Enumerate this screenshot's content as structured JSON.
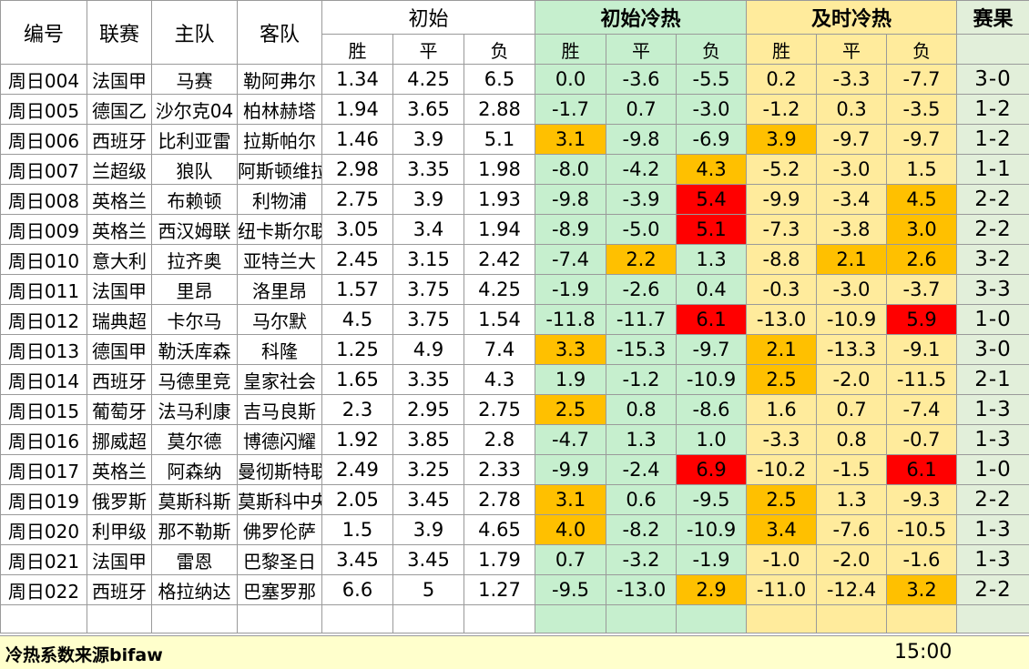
{
  "headers": {
    "id": "编号",
    "league": "联赛",
    "home": "主队",
    "away": "客队",
    "initial": "初始",
    "initial_heat": "初始冷热",
    "live_heat": "及时冷热",
    "result": "赛果",
    "win": "胜",
    "draw": "平",
    "loss": "负"
  },
  "rows": [
    {
      "id": "周日004",
      "league": "法国甲",
      "home": "马赛",
      "away": "勒阿弗尔",
      "o": [
        "1.34",
        "4.25",
        "6.5"
      ],
      "h": [
        "0.0",
        "-3.6",
        "-5.5"
      ],
      "l": [
        "0.2",
        "-3.3",
        "-7.7"
      ],
      "res": "3-0"
    },
    {
      "id": "周日005",
      "league": "德国乙",
      "home": "沙尔克04",
      "away": "柏林赫塔",
      "o": [
        "1.94",
        "3.65",
        "2.88"
      ],
      "h": [
        "-1.7",
        "0.7",
        "-3.0"
      ],
      "l": [
        "-1.2",
        "0.3",
        "-3.5"
      ],
      "res": "1-2"
    },
    {
      "id": "周日006",
      "league": "西班牙",
      "home": "比利亚雷",
      "away": "拉斯帕尔",
      "o": [
        "1.46",
        "3.9",
        "5.1"
      ],
      "h": [
        "3.1",
        "-9.8",
        "-6.9"
      ],
      "l": [
        "3.9",
        "-9.7",
        "-9.7"
      ],
      "res": "1-2"
    },
    {
      "id": "周日007",
      "league": "兰超级",
      "home": "狼队",
      "away": "阿斯顿维拉",
      "o": [
        "2.98",
        "3.35",
        "1.98"
      ],
      "h": [
        "-8.0",
        "-4.2",
        "4.3"
      ],
      "l": [
        "-5.2",
        "-3.0",
        "1.5"
      ],
      "res": "1-1"
    },
    {
      "id": "周日008",
      "league": "英格兰",
      "home": "布赖顿",
      "away": "利物浦",
      "o": [
        "2.75",
        "3.9",
        "1.93"
      ],
      "h": [
        "-9.8",
        "-3.9",
        "5.4"
      ],
      "l": [
        "-9.9",
        "-3.4",
        "4.5"
      ],
      "res": "2-2"
    },
    {
      "id": "周日009",
      "league": "英格兰",
      "home": "西汉姆联",
      "away": "纽卡斯尔联",
      "o": [
        "3.05",
        "3.4",
        "1.94"
      ],
      "h": [
        "-8.9",
        "-5.0",
        "5.1"
      ],
      "l": [
        "-7.3",
        "-3.8",
        "3.0"
      ],
      "res": "2-2"
    },
    {
      "id": "周日010",
      "league": "意大利",
      "home": "拉齐奥",
      "away": "亚特兰大",
      "o": [
        "2.45",
        "3.15",
        "2.42"
      ],
      "h": [
        "-7.4",
        "2.2",
        "1.3"
      ],
      "l": [
        "-8.8",
        "2.1",
        "2.6"
      ],
      "res": "3-2"
    },
    {
      "id": "周日011",
      "league": "法国甲",
      "home": "里昂",
      "away": "洛里昂",
      "o": [
        "1.57",
        "3.75",
        "4.25"
      ],
      "h": [
        "-1.9",
        "-2.6",
        "0.4"
      ],
      "l": [
        "-0.3",
        "-3.0",
        "-3.7"
      ],
      "res": "3-3"
    },
    {
      "id": "周日012",
      "league": "瑞典超",
      "home": "卡尔马",
      "away": "马尔默",
      "o": [
        "4.5",
        "3.75",
        "1.54"
      ],
      "h": [
        "-11.8",
        "-11.7",
        "6.1"
      ],
      "l": [
        "-13.0",
        "-10.9",
        "5.9"
      ],
      "res": "1-0"
    },
    {
      "id": "周日013",
      "league": "德国甲",
      "home": "勒沃库森",
      "away": "科隆",
      "o": [
        "1.25",
        "4.9",
        "7.4"
      ],
      "h": [
        "3.3",
        "-15.3",
        "-9.7"
      ],
      "l": [
        "2.1",
        "-13.3",
        "-9.1"
      ],
      "res": "3-0"
    },
    {
      "id": "周日014",
      "league": "西班牙",
      "home": "马德里竞",
      "away": "皇家社会",
      "o": [
        "1.65",
        "3.35",
        "4.3"
      ],
      "h": [
        "1.9",
        "-1.2",
        "-10.9"
      ],
      "l": [
        "2.5",
        "-2.0",
        "-11.5"
      ],
      "res": "2-1"
    },
    {
      "id": "周日015",
      "league": "葡萄牙",
      "home": "法马利康",
      "away": "吉马良斯",
      "o": [
        "2.3",
        "2.95",
        "2.75"
      ],
      "h": [
        "2.5",
        "0.8",
        "-8.6"
      ],
      "l": [
        "1.6",
        "0.7",
        "-7.4"
      ],
      "res": "1-3"
    },
    {
      "id": "周日016",
      "league": "挪威超",
      "home": "莫尔德",
      "away": "博德闪耀",
      "o": [
        "1.92",
        "3.85",
        "2.8"
      ],
      "h": [
        "-4.7",
        "1.3",
        "1.0"
      ],
      "l": [
        "-3.3",
        "0.8",
        "-0.7"
      ],
      "res": "1-3"
    },
    {
      "id": "周日017",
      "league": "英格兰",
      "home": "阿森纳",
      "away": "曼彻斯特联",
      "o": [
        "2.49",
        "3.25",
        "2.33"
      ],
      "h": [
        "-9.9",
        "-2.4",
        "6.9"
      ],
      "l": [
        "-10.2",
        "-1.5",
        "6.1"
      ],
      "res": "1-0"
    },
    {
      "id": "周日019",
      "league": "俄罗斯",
      "home": "莫斯科斯",
      "away": "莫斯科中央",
      "o": [
        "2.05",
        "3.45",
        "2.78"
      ],
      "h": [
        "3.1",
        "0.6",
        "-9.5"
      ],
      "l": [
        "2.5",
        "1.3",
        "-9.3"
      ],
      "res": "2-2"
    },
    {
      "id": "周日020",
      "league": "利甲级",
      "home": "那不勒斯",
      "away": "佛罗伦萨",
      "o": [
        "1.5",
        "3.9",
        "4.65"
      ],
      "h": [
        "4.0",
        "-8.2",
        "-10.9"
      ],
      "l": [
        "3.4",
        "-7.6",
        "-10.5"
      ],
      "res": "1-3"
    },
    {
      "id": "周日021",
      "league": "法国甲",
      "home": "雷恩",
      "away": "巴黎圣日",
      "o": [
        "3.45",
        "3.45",
        "1.79"
      ],
      "h": [
        "0.7",
        "-3.2",
        "-1.9"
      ],
      "l": [
        "-1.0",
        "-2.0",
        "-1.6"
      ],
      "res": "1-3"
    },
    {
      "id": "周日022",
      "league": "西班牙",
      "home": "格拉纳达",
      "away": "巴塞罗那",
      "o": [
        "6.6",
        "5",
        "1.27"
      ],
      "h": [
        "-9.5",
        "-13.0",
        "2.9"
      ],
      "l": [
        "-11.0",
        "-12.4",
        "3.2"
      ],
      "res": "2-2"
    }
  ],
  "highlight": {
    "heat": [
      "g,g,g",
      "g,g,g",
      "o,g,g",
      "g,g,o",
      "g,g,r",
      "g,g,r",
      "g,o,g",
      "g,g,g",
      "g,g,r",
      "o,g,g",
      "g,g,g",
      "o,g,g",
      "g,g,g",
      "g,g,r",
      "o,g,g",
      "o,g,g",
      "g,g,g",
      "g,g,o"
    ],
    "live": [
      "y,y,y",
      "y,y,y",
      "o,y,y",
      "y,y,y",
      "y,y,o",
      "y,y,o",
      "y,o,o",
      "y,y,y",
      "y,y,r",
      "o,y,y",
      "o,y,y",
      "y,y,y",
      "y,y,y",
      "y,y,r",
      "o,y,y",
      "o,y,y",
      "y,y,y",
      "y,y,o"
    ]
  },
  "colors": {
    "green": "#c6efce",
    "yellow": "#ffeb9c",
    "orange": "#ffc000",
    "red": "#ff0000"
  },
  "footer": {
    "source": "冷热系数来源bifaw",
    "time": "15:00"
  }
}
